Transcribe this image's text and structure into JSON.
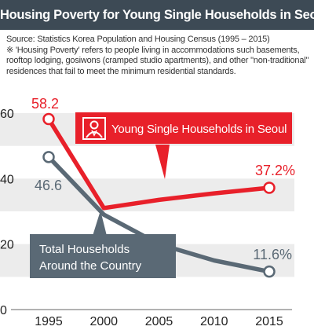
{
  "header": {
    "title": "Housing Poverty for Young Single Households in Seoul"
  },
  "notes": {
    "source": "Source: Statistics Korea Population and Housing Census (1995 – 2015)",
    "note_line1": "※ 'Housing Poverty' refers to people living in accommodations such basements,",
    "note_line2": "rooftop lodging, gosiwons (cramped studio apartments), and other \"non-traditional\"",
    "note_line3": "residences that fail to meet the minimum residential standards."
  },
  "colors": {
    "seoul": "#e8202a",
    "national": "#5a6975",
    "band": "#ececec",
    "title_bg": "#3d4a55"
  },
  "icons": {
    "seoul_label_icon": "person-icon"
  },
  "chart_data": {
    "type": "line",
    "x": [
      1995,
      2000,
      2005,
      2010,
      2015
    ],
    "ylim": [
      0,
      60
    ],
    "yticks": [
      0,
      20,
      40,
      60
    ],
    "xticks": [
      1995,
      2000,
      2005,
      2010,
      2015
    ],
    "grid": "alternating horizontal bands",
    "series": [
      {
        "name": "Young Single Households in Seoul",
        "values": [
          58.2,
          31.0,
          33.5,
          35.5,
          37.2
        ],
        "labels": {
          "1995": "58.2",
          "2015": "37.2%"
        },
        "color": "#e8202a"
      },
      {
        "name": "Total Households Around the Country",
        "name_line1": "Total Households",
        "name_line2": "Around the Country",
        "values": [
          46.6,
          29.0,
          20.0,
          15.0,
          11.6
        ],
        "labels": {
          "1995": "46.6",
          "2015": "11.6%"
        },
        "color": "#5a6975"
      }
    ]
  }
}
